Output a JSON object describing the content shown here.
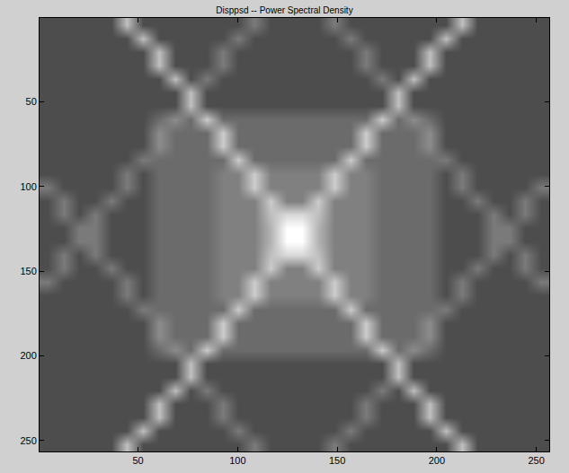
{
  "chart_data": {
    "type": "heatmap",
    "title": "Disppsd -- Power Spectral Density",
    "x": [
      4.5,
      12.5,
      20.5,
      28.5,
      36.5,
      44.5,
      52.5,
      60.5,
      68.5,
      76.5,
      84.5,
      92.5,
      100.5,
      108.5,
      116.5,
      124.5,
      132.5,
      140.5,
      148.5,
      156.5,
      164.5,
      172.5,
      180.5,
      188.5,
      196.5,
      204.5,
      212.5,
      220.5,
      228.5,
      236.5,
      244.5,
      252.5
    ],
    "y": [
      4.5,
      12.5,
      20.5,
      28.5,
      36.5,
      44.5,
      52.5,
      60.5,
      68.5,
      76.5,
      84.5,
      92.5,
      100.5,
      108.5,
      116.5,
      124.5,
      132.5,
      140.5,
      148.5,
      156.5,
      164.5,
      172.5,
      180.5,
      188.5,
      196.5,
      204.5,
      212.5,
      220.5,
      228.5,
      236.5,
      244.5,
      252.5
    ],
    "z": [
      [
        30,
        30,
        30,
        30,
        30,
        75,
        30,
        30,
        30,
        30,
        30,
        30,
        30,
        48,
        30,
        30,
        30,
        30,
        48,
        30,
        30,
        30,
        30,
        30,
        30,
        30,
        75,
        30,
        30,
        30,
        30,
        30
      ],
      [
        30,
        30,
        30,
        30,
        30,
        30,
        75,
        30,
        30,
        30,
        30,
        30,
        48,
        30,
        30,
        30,
        30,
        30,
        30,
        48,
        30,
        30,
        30,
        30,
        30,
        75,
        30,
        30,
        30,
        30,
        30,
        30
      ],
      [
        30,
        30,
        30,
        30,
        30,
        30,
        30,
        75,
        30,
        30,
        30,
        48,
        30,
        30,
        30,
        30,
        30,
        30,
        30,
        30,
        48,
        30,
        30,
        30,
        75,
        30,
        30,
        30,
        30,
        30,
        30,
        30
      ],
      [
        30,
        30,
        30,
        30,
        30,
        30,
        30,
        75,
        30,
        30,
        30,
        48,
        30,
        30,
        30,
        30,
        30,
        30,
        30,
        30,
        48,
        30,
        30,
        30,
        75,
        30,
        30,
        30,
        30,
        30,
        30,
        30
      ],
      [
        30,
        30,
        30,
        30,
        30,
        30,
        30,
        30,
        75,
        30,
        48,
        30,
        30,
        30,
        30,
        30,
        30,
        30,
        30,
        30,
        30,
        48,
        30,
        75,
        30,
        30,
        30,
        30,
        30,
        30,
        30,
        30
      ],
      [
        30,
        30,
        30,
        30,
        30,
        30,
        30,
        30,
        30,
        75,
        30,
        30,
        30,
        30,
        30,
        30,
        30,
        30,
        30,
        30,
        30,
        30,
        75,
        30,
        30,
        30,
        30,
        30,
        30,
        30,
        30,
        30
      ],
      [
        30,
        30,
        30,
        30,
        30,
        30,
        30,
        30,
        30,
        75,
        30,
        30,
        30,
        30,
        30,
        30,
        30,
        30,
        30,
        30,
        30,
        30,
        75,
        30,
        30,
        30,
        30,
        30,
        30,
        30,
        30,
        30
      ],
      [
        30,
        30,
        30,
        30,
        30,
        30,
        30,
        42,
        55,
        42,
        80,
        42,
        42,
        42,
        42,
        42,
        42,
        42,
        42,
        42,
        42,
        80,
        42,
        55,
        42,
        30,
        30,
        30,
        30,
        30,
        30,
        30
      ],
      [
        30,
        30,
        30,
        30,
        30,
        30,
        30,
        55,
        42,
        42,
        42,
        80,
        42,
        42,
        42,
        42,
        42,
        42,
        42,
        42,
        80,
        42,
        42,
        42,
        55,
        30,
        30,
        30,
        30,
        30,
        30,
        30
      ],
      [
        30,
        30,
        30,
        30,
        30,
        30,
        30,
        55,
        42,
        42,
        42,
        80,
        42,
        42,
        42,
        42,
        42,
        42,
        42,
        42,
        80,
        42,
        42,
        42,
        55,
        30,
        30,
        30,
        30,
        30,
        30,
        30
      ],
      [
        30,
        30,
        30,
        30,
        30,
        30,
        48,
        42,
        42,
        42,
        42,
        42,
        80,
        42,
        42,
        42,
        42,
        42,
        42,
        80,
        42,
        42,
        42,
        42,
        42,
        48,
        30,
        30,
        30,
        30,
        30,
        30
      ],
      [
        30,
        30,
        30,
        30,
        30,
        48,
        30,
        42,
        42,
        42,
        42,
        50,
        50,
        80,
        50,
        50,
        50,
        50,
        80,
        50,
        50,
        42,
        42,
        42,
        42,
        30,
        48,
        30,
        30,
        30,
        30,
        30
      ],
      [
        48,
        30,
        30,
        30,
        30,
        48,
        30,
        42,
        42,
        42,
        42,
        50,
        50,
        80,
        50,
        50,
        50,
        50,
        80,
        50,
        50,
        42,
        42,
        42,
        42,
        30,
        48,
        30,
        30,
        30,
        30,
        48
      ],
      [
        30,
        48,
        30,
        30,
        48,
        30,
        30,
        42,
        42,
        42,
        42,
        50,
        50,
        50,
        80,
        50,
        50,
        80,
        50,
        50,
        50,
        42,
        42,
        42,
        42,
        30,
        30,
        48,
        30,
        30,
        48,
        30
      ],
      [
        30,
        48,
        30,
        48,
        30,
        30,
        30,
        42,
        42,
        42,
        42,
        50,
        50,
        50,
        75,
        85,
        85,
        75,
        50,
        50,
        50,
        42,
        42,
        42,
        42,
        30,
        30,
        30,
        48,
        30,
        48,
        30
      ],
      [
        30,
        30,
        48,
        48,
        30,
        30,
        30,
        42,
        42,
        42,
        42,
        50,
        50,
        50,
        70,
        100,
        100,
        70,
        50,
        50,
        50,
        42,
        42,
        42,
        42,
        30,
        30,
        30,
        48,
        48,
        30,
        30
      ],
      [
        30,
        30,
        48,
        48,
        30,
        30,
        30,
        42,
        42,
        42,
        42,
        50,
        50,
        50,
        70,
        100,
        100,
        70,
        50,
        50,
        50,
        42,
        42,
        42,
        42,
        30,
        30,
        30,
        48,
        48,
        30,
        30
      ],
      [
        30,
        48,
        30,
        48,
        30,
        30,
        30,
        42,
        42,
        42,
        42,
        50,
        50,
        50,
        75,
        85,
        85,
        75,
        50,
        50,
        50,
        42,
        42,
        42,
        42,
        30,
        30,
        30,
        48,
        30,
        48,
        30
      ],
      [
        30,
        48,
        30,
        30,
        48,
        30,
        30,
        42,
        42,
        42,
        42,
        50,
        50,
        50,
        80,
        50,
        50,
        80,
        50,
        50,
        50,
        42,
        42,
        42,
        42,
        30,
        30,
        48,
        30,
        30,
        48,
        30
      ],
      [
        48,
        30,
        30,
        30,
        30,
        48,
        30,
        42,
        42,
        42,
        42,
        50,
        50,
        80,
        50,
        50,
        50,
        50,
        80,
        50,
        50,
        42,
        42,
        42,
        42,
        30,
        48,
        30,
        30,
        30,
        30,
        48
      ],
      [
        30,
        30,
        30,
        30,
        30,
        48,
        30,
        42,
        42,
        42,
        42,
        50,
        50,
        80,
        50,
        50,
        50,
        50,
        80,
        50,
        50,
        42,
        42,
        42,
        42,
        30,
        48,
        30,
        30,
        30,
        30,
        30
      ],
      [
        30,
        30,
        30,
        30,
        30,
        30,
        48,
        42,
        42,
        42,
        42,
        42,
        80,
        42,
        42,
        42,
        42,
        42,
        42,
        80,
        42,
        42,
        42,
        42,
        42,
        48,
        30,
        30,
        30,
        30,
        30,
        30
      ],
      [
        30,
        30,
        30,
        30,
        30,
        30,
        30,
        55,
        42,
        42,
        42,
        80,
        42,
        42,
        42,
        42,
        42,
        42,
        42,
        42,
        80,
        42,
        42,
        42,
        55,
        30,
        30,
        30,
        30,
        30,
        30,
        30
      ],
      [
        30,
        30,
        30,
        30,
        30,
        30,
        30,
        55,
        42,
        42,
        42,
        80,
        42,
        42,
        42,
        42,
        42,
        42,
        42,
        42,
        80,
        42,
        42,
        42,
        55,
        30,
        30,
        30,
        30,
        30,
        30,
        30
      ],
      [
        30,
        30,
        30,
        30,
        30,
        30,
        30,
        42,
        55,
        42,
        80,
        42,
        42,
        42,
        42,
        42,
        42,
        42,
        42,
        42,
        42,
        80,
        42,
        55,
        42,
        30,
        30,
        30,
        30,
        30,
        30,
        30
      ],
      [
        30,
        30,
        30,
        30,
        30,
        30,
        30,
        30,
        30,
        75,
        30,
        30,
        30,
        30,
        30,
        30,
        30,
        30,
        30,
        30,
        30,
        30,
        75,
        30,
        30,
        30,
        30,
        30,
        30,
        30,
        30,
        30
      ],
      [
        30,
        30,
        30,
        30,
        30,
        30,
        30,
        30,
        30,
        75,
        30,
        30,
        30,
        30,
        30,
        30,
        30,
        30,
        30,
        30,
        30,
        30,
        75,
        30,
        30,
        30,
        30,
        30,
        30,
        30,
        30,
        30
      ],
      [
        30,
        30,
        30,
        30,
        30,
        30,
        30,
        30,
        75,
        30,
        48,
        30,
        30,
        30,
        30,
        30,
        30,
        30,
        30,
        30,
        30,
        48,
        30,
        75,
        30,
        30,
        30,
        30,
        30,
        30,
        30,
        30
      ],
      [
        30,
        30,
        30,
        30,
        30,
        30,
        30,
        75,
        30,
        30,
        30,
        48,
        30,
        30,
        30,
        30,
        30,
        30,
        30,
        30,
        48,
        30,
        30,
        30,
        75,
        30,
        30,
        30,
        30,
        30,
        30,
        30
      ],
      [
        30,
        30,
        30,
        30,
        30,
        30,
        30,
        75,
        30,
        30,
        30,
        48,
        30,
        30,
        30,
        30,
        30,
        30,
        30,
        30,
        48,
        30,
        30,
        30,
        75,
        30,
        30,
        30,
        30,
        30,
        30,
        30
      ],
      [
        30,
        30,
        30,
        30,
        30,
        30,
        75,
        30,
        30,
        30,
        30,
        30,
        48,
        30,
        30,
        30,
        30,
        30,
        30,
        48,
        30,
        30,
        30,
        30,
        30,
        75,
        30,
        30,
        30,
        30,
        30,
        30
      ],
      [
        30,
        30,
        30,
        30,
        30,
        75,
        30,
        30,
        30,
        30,
        30,
        30,
        30,
        48,
        30,
        30,
        30,
        30,
        48,
        30,
        30,
        30,
        30,
        30,
        30,
        30,
        75,
        30,
        30,
        30,
        30,
        30
      ]
    ],
    "zlim": [
      0,
      100
    ],
    "xlim": [
      0.5,
      256.5
    ],
    "ylim": [
      256.5,
      0.5
    ],
    "xticks": [
      50,
      100,
      150,
      200,
      250
    ],
    "yticks": [
      50,
      100,
      150,
      200,
      250
    ]
  }
}
